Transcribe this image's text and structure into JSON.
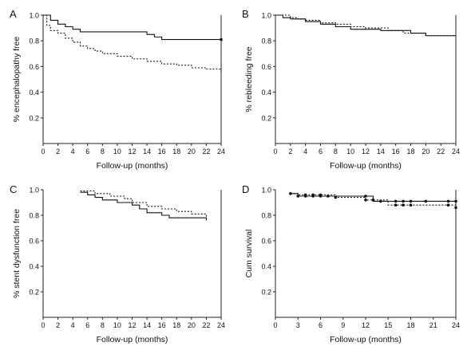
{
  "chart_data": [
    {
      "type": "line",
      "panel_label": "A",
      "xlabel": "Follow-up (months)",
      "ylabel": "% encephalopathy free",
      "xlim": [
        0,
        24
      ],
      "ylim": [
        0,
        1.0
      ],
      "x_ticks": [
        "0",
        "2",
        "4",
        "6",
        "8",
        "10",
        "12",
        "14",
        "16",
        "18",
        "20",
        "22",
        "24"
      ],
      "y_ticks": [
        "0.2",
        "0.4",
        "0.6",
        "0.8",
        "1.0"
      ],
      "grid": false,
      "series": [
        {
          "style": "solid",
          "x": [
            0,
            1,
            2,
            3,
            4,
            5,
            14,
            15,
            16,
            24
          ],
          "y": [
            1.0,
            0.96,
            0.93,
            0.91,
            0.89,
            0.87,
            0.85,
            0.83,
            0.81,
            0.81
          ],
          "censor_x": [
            24
          ]
        },
        {
          "style": "dotted",
          "x": [
            0,
            0.5,
            1,
            2,
            3,
            4,
            5,
            6,
            7,
            8,
            10,
            12,
            14,
            16,
            18,
            20,
            22,
            24
          ],
          "y": [
            1.0,
            0.92,
            0.88,
            0.86,
            0.82,
            0.79,
            0.76,
            0.74,
            0.72,
            0.7,
            0.68,
            0.66,
            0.64,
            0.62,
            0.61,
            0.59,
            0.58,
            0.56
          ],
          "censor_x": []
        }
      ]
    },
    {
      "type": "line",
      "panel_label": "B",
      "xlabel": "Follow-up (months)",
      "ylabel": "% rebleeding free",
      "xlim": [
        0,
        24
      ],
      "ylim": [
        0,
        1.0
      ],
      "x_ticks": [
        "0",
        "2",
        "4",
        "6",
        "8",
        "10",
        "12",
        "14",
        "16",
        "18",
        "20",
        "22",
        "24"
      ],
      "y_ticks": [
        "0.2",
        "0.4",
        "0.6",
        "0.8",
        "1.0"
      ],
      "grid": false,
      "series": [
        {
          "style": "solid",
          "x": [
            0,
            1,
            2,
            4,
            6,
            8,
            10,
            14,
            18,
            20,
            24
          ],
          "y": [
            1.0,
            0.98,
            0.97,
            0.95,
            0.93,
            0.91,
            0.89,
            0.88,
            0.86,
            0.84,
            0.84
          ],
          "censor_x": []
        },
        {
          "style": "dotted",
          "x": [
            0,
            2,
            3,
            4,
            6,
            8,
            10,
            12,
            15,
            17,
            20,
            24
          ],
          "y": [
            1.0,
            0.98,
            0.97,
            0.96,
            0.94,
            0.93,
            0.91,
            0.9,
            0.88,
            0.86,
            0.84,
            0.84
          ],
          "censor_x": []
        }
      ]
    },
    {
      "type": "line",
      "panel_label": "C",
      "xlabel": "Follow-up (months)",
      "ylabel": "% stent dysfunction free",
      "xlim": [
        0,
        24
      ],
      "ylim": [
        0,
        1.0
      ],
      "x_ticks": [
        "0",
        "2",
        "4",
        "6",
        "8",
        "10",
        "12",
        "14",
        "16",
        "18",
        "20",
        "22",
        "24"
      ],
      "y_ticks": [
        "0.2",
        "0.4",
        "0.6",
        "0.8",
        "1.0"
      ],
      "grid": false,
      "series": [
        {
          "style": "solid",
          "x": [
            5,
            6,
            7,
            8,
            10,
            12,
            13,
            14,
            16,
            17,
            22
          ],
          "y": [
            0.98,
            0.96,
            0.94,
            0.92,
            0.9,
            0.88,
            0.85,
            0.82,
            0.8,
            0.78,
            0.76
          ],
          "censor_x": []
        },
        {
          "style": "dotted",
          "x": [
            5,
            7,
            9,
            11,
            12,
            14,
            16,
            18,
            20,
            22
          ],
          "y": [
            0.99,
            0.97,
            0.95,
            0.93,
            0.9,
            0.87,
            0.85,
            0.83,
            0.81,
            0.79
          ],
          "censor_x": []
        }
      ]
    },
    {
      "type": "line",
      "panel_label": "D",
      "xlabel": "Follow-up (months)",
      "ylabel": "Cum survival",
      "xlim": [
        0,
        24
      ],
      "ylim": [
        0,
        1.0
      ],
      "x_ticks": [
        "0",
        "3",
        "6",
        "9",
        "12",
        "15",
        "18",
        "21",
        "24"
      ],
      "y_ticks": [
        "0.2",
        "0.4",
        "0.6",
        "0.8",
        "1.0"
      ],
      "grid": false,
      "series": [
        {
          "style": "solid",
          "x": [
            2,
            3,
            12,
            13,
            24
          ],
          "y": [
            0.97,
            0.95,
            0.95,
            0.91,
            0.91
          ],
          "censor_x": [
            3,
            4,
            5,
            6,
            7,
            12,
            14,
            16,
            17,
            18,
            20,
            23,
            24
          ]
        },
        {
          "style": "dotted",
          "x": [
            2,
            3,
            8,
            12,
            15,
            24
          ],
          "y": [
            0.97,
            0.96,
            0.94,
            0.92,
            0.88,
            0.86
          ],
          "censor_x": [
            2,
            4,
            5,
            6,
            8,
            12,
            13,
            16,
            17,
            18,
            23,
            24
          ]
        }
      ]
    }
  ]
}
